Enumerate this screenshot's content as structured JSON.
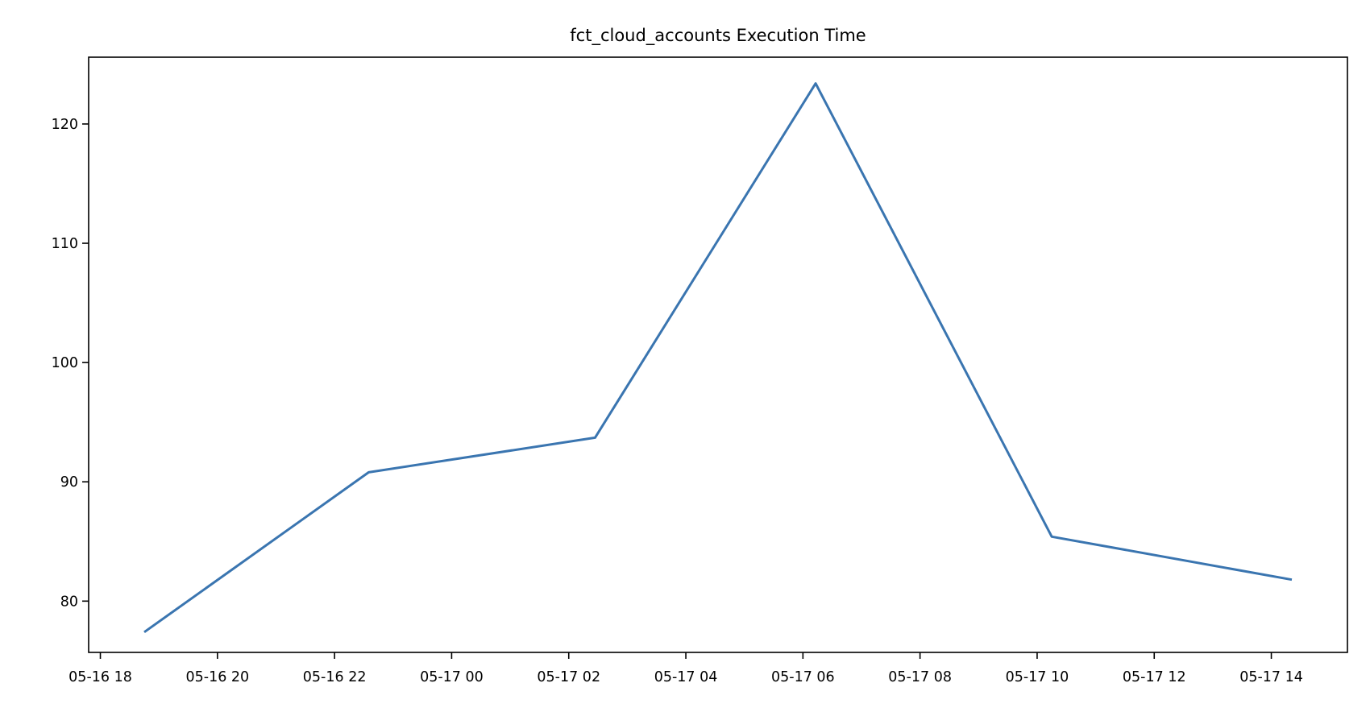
{
  "chart_data": {
    "type": "line",
    "title": "fct_cloud_accounts Execution Time",
    "xlabel": "",
    "ylabel": "",
    "x_format": "MM-DD HH",
    "xlim": [
      "05-16 17:48",
      "05-17 15:18"
    ],
    "ylim": [
      75.7,
      125.6
    ],
    "grid": false,
    "line_color": "#3a75b0",
    "x_ticks": [
      "05-16 18:00",
      "05-16 20:00",
      "05-16 22:00",
      "05-17 00:00",
      "05-17 02:00",
      "05-17 04:00",
      "05-17 06:00",
      "05-17 08:00",
      "05-17 10:00",
      "05-17 12:00",
      "05-17 14:00"
    ],
    "x_tick_labels": [
      "05-16 18",
      "05-16 20",
      "05-16 22",
      "05-17 00",
      "05-17 02",
      "05-17 04",
      "05-17 06",
      "05-17 08",
      "05-17 10",
      "05-17 12",
      "05-17 14"
    ],
    "y_ticks": [
      80,
      90,
      100,
      110,
      120
    ],
    "y_tick_labels": [
      "80",
      "90",
      "100",
      "110",
      "120"
    ],
    "series": [
      {
        "x": [
          "05-16 18:45",
          "05-16 22:35",
          "05-17 02:27",
          "05-17 06:13",
          "05-17 10:15",
          "05-17 14:21"
        ],
        "y": [
          77.4,
          90.8,
          93.7,
          123.4,
          85.4,
          81.8
        ]
      }
    ]
  }
}
